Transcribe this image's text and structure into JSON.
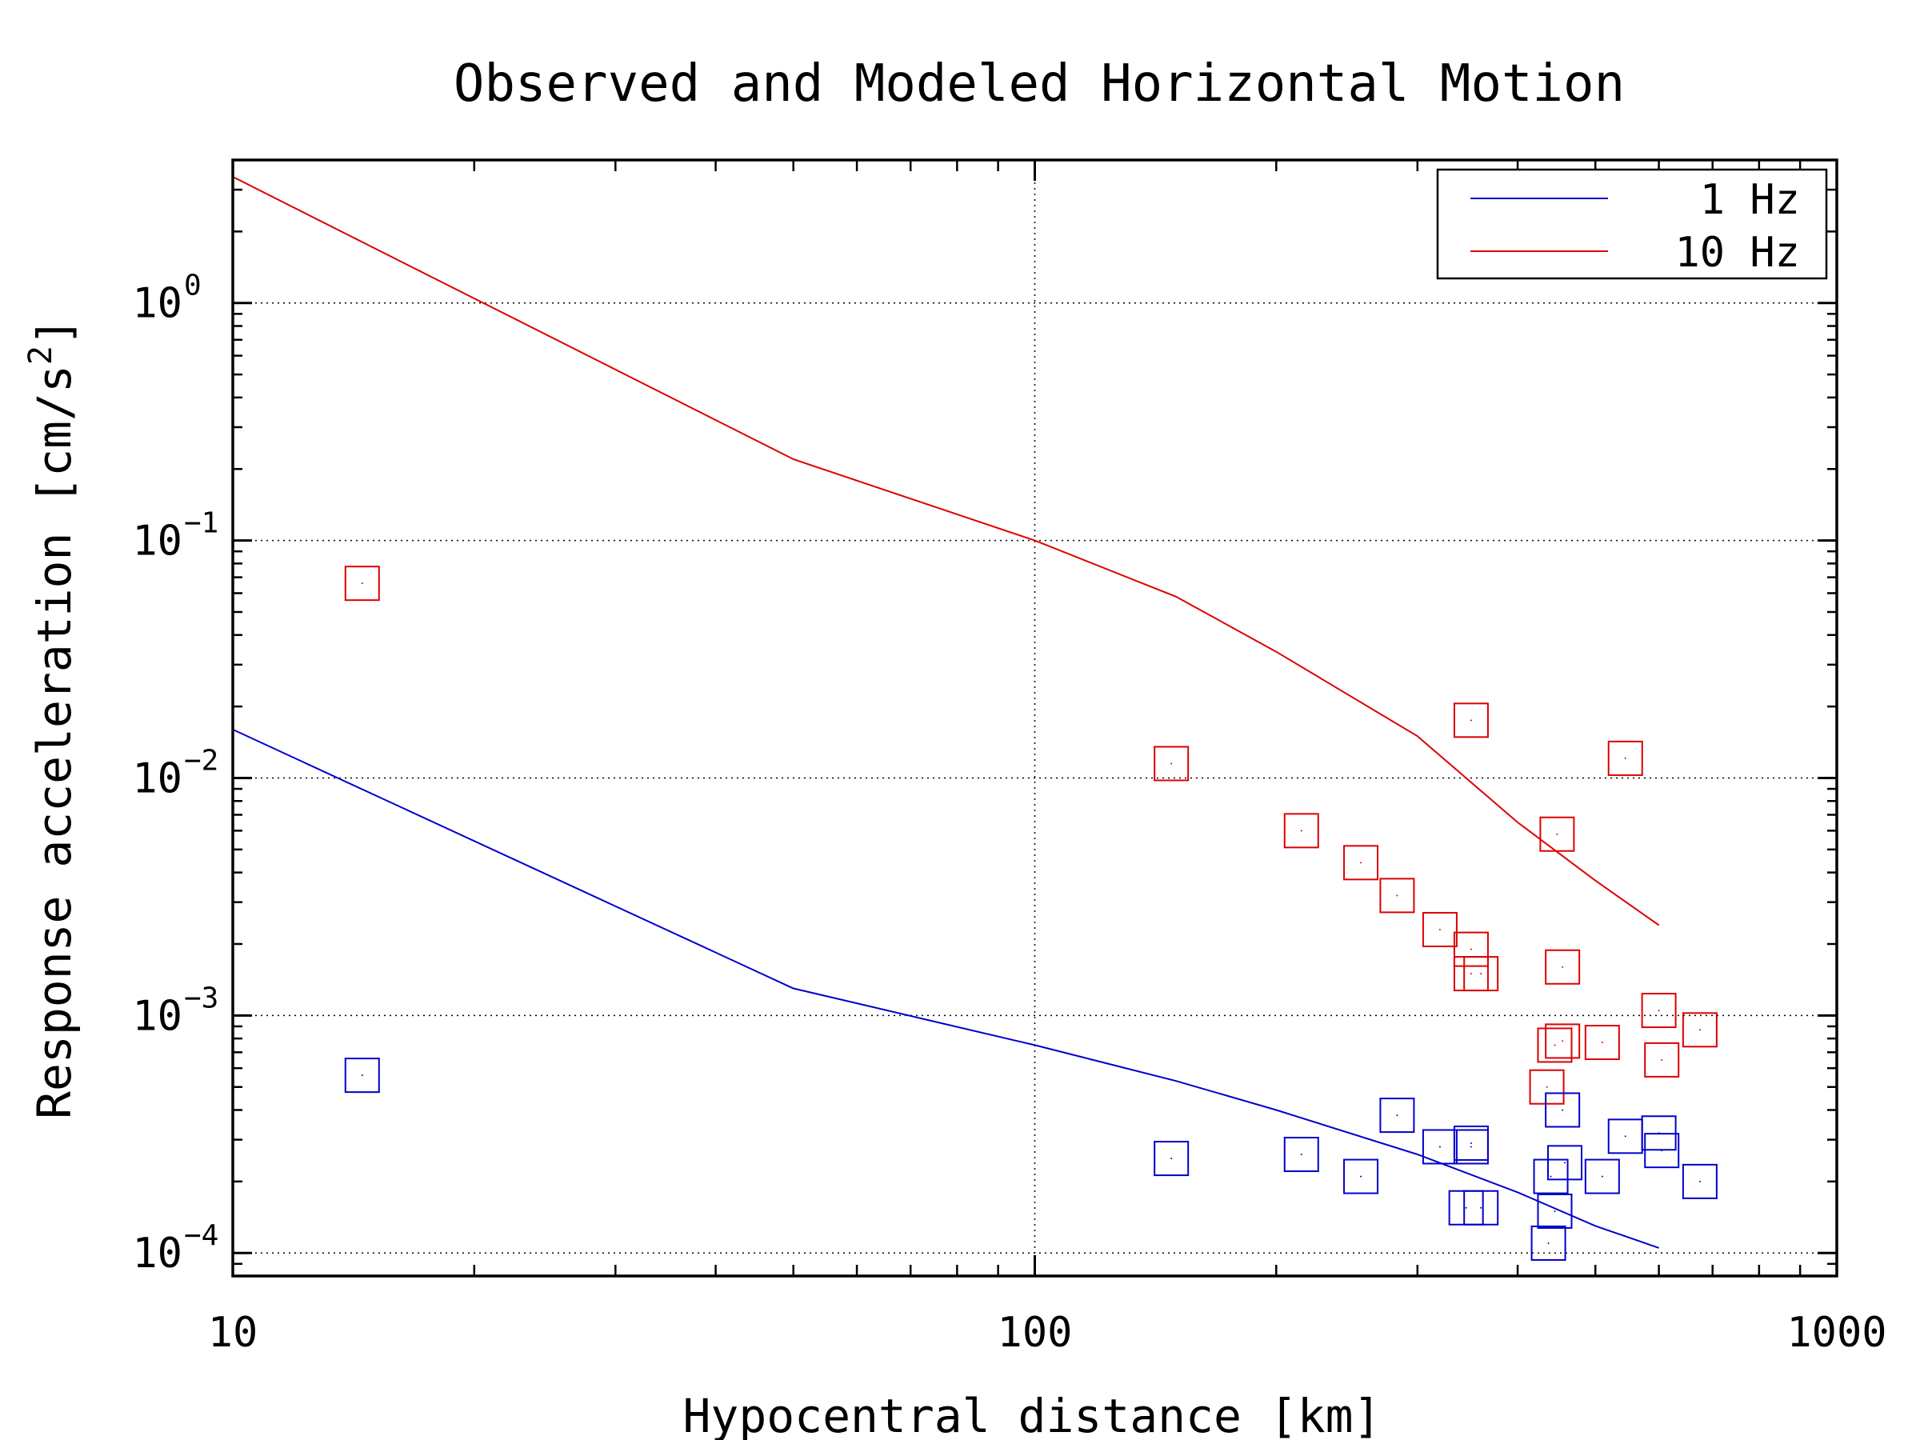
{
  "chart_data": {
    "type": "scatter",
    "title": "Observed and Modeled Horizontal Motion",
    "xlabel": "Hypocentral distance [km]",
    "ylabel": "Response acceleration [cm/s2]",
    "x_scale": "log",
    "y_scale": "log",
    "xlim": [
      10,
      1000
    ],
    "ylim": [
      8e-05,
      4
    ],
    "x_ticks": [
      {
        "value": 10,
        "label": "10"
      },
      {
        "value": 100,
        "label": "100"
      },
      {
        "value": 1000,
        "label": "1000"
      }
    ],
    "y_ticks": [
      {
        "value": 0.0001,
        "base": "10",
        "exp": "−4"
      },
      {
        "value": 0.001,
        "base": "10",
        "exp": "−3"
      },
      {
        "value": 0.01,
        "base": "10",
        "exp": "−2"
      },
      {
        "value": 0.1,
        "base": "10",
        "exp": "−1"
      },
      {
        "value": 1,
        "base": "10",
        "exp": "0"
      }
    ],
    "grid": true,
    "legend_position": "top-right",
    "series": [
      {
        "name": "1 Hz",
        "kind": "line",
        "color": "#0000cc",
        "points": [
          [
            10,
            0.016
          ],
          [
            50,
            0.0013
          ],
          [
            100,
            0.00075
          ],
          [
            150,
            0.00053
          ],
          [
            200,
            0.0004
          ],
          [
            300,
            0.00026
          ],
          [
            400,
            0.00018
          ],
          [
            500,
            0.00013
          ],
          [
            600,
            0.000105
          ]
        ]
      },
      {
        "name": "10 Hz",
        "kind": "line",
        "color": "#dd0000",
        "points": [
          [
            10,
            3.4
          ],
          [
            50,
            0.22
          ],
          [
            100,
            0.1
          ],
          [
            150,
            0.058
          ],
          [
            200,
            0.034
          ],
          [
            300,
            0.015
          ],
          [
            400,
            0.0065
          ],
          [
            500,
            0.0037
          ],
          [
            600,
            0.0024
          ]
        ]
      },
      {
        "name": "",
        "kind": "markers",
        "color": "#dd0000",
        "points": [
          [
            14.5,
            0.066
          ],
          [
            148,
            0.0115
          ],
          [
            215,
            0.006
          ],
          [
            255,
            0.0044
          ],
          [
            283,
            0.0032
          ],
          [
            320,
            0.0023
          ],
          [
            350,
            0.0019
          ],
          [
            350,
            0.0015
          ],
          [
            360,
            0.0015
          ],
          [
            350,
            0.0175
          ],
          [
            448,
            0.0058
          ],
          [
            455,
            0.0016
          ],
          [
            445,
            0.00075
          ],
          [
            455,
            0.00078
          ],
          [
            435,
            0.0005
          ],
          [
            510,
            0.00077
          ],
          [
            545,
            0.0121
          ],
          [
            600,
            0.00105
          ],
          [
            605,
            0.00065
          ],
          [
            675,
            0.00087
          ]
        ]
      },
      {
        "name": "",
        "kind": "markers",
        "color": "#0000cc",
        "points": [
          [
            14.5,
            0.00056
          ],
          [
            148,
            0.00025
          ],
          [
            215,
            0.00026
          ],
          [
            255,
            0.00021
          ],
          [
            283,
            0.00038
          ],
          [
            320,
            0.00028
          ],
          [
            350,
            0.00029
          ],
          [
            350,
            0.00028
          ],
          [
            345,
            0.000155
          ],
          [
            360,
            0.000155
          ],
          [
            440,
            0.00021
          ],
          [
            455,
            0.0004
          ],
          [
            458,
            0.00024
          ],
          [
            445,
            0.00015
          ],
          [
            437,
            0.00011
          ],
          [
            510,
            0.00021
          ],
          [
            545,
            0.00031
          ],
          [
            600,
            0.00032
          ],
          [
            605,
            0.00027
          ],
          [
            675,
            0.0002
          ]
        ]
      }
    ]
  }
}
